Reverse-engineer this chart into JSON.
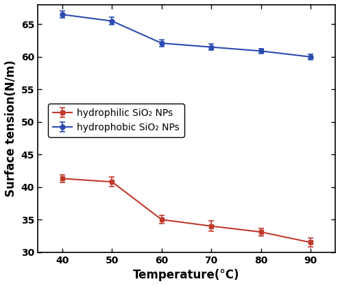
{
  "temperature": [
    40,
    50,
    60,
    70,
    80,
    90
  ],
  "hydrophilic_y": [
    41.3,
    40.8,
    35.0,
    34.0,
    33.1,
    31.5
  ],
  "hydrophilic_yerr": [
    0.6,
    0.7,
    0.6,
    0.8,
    0.6,
    0.7
  ],
  "hydrophobic_y": [
    66.5,
    65.5,
    62.1,
    61.5,
    60.9,
    60.0
  ],
  "hydrophobic_yerr": [
    0.5,
    0.6,
    0.5,
    0.5,
    0.4,
    0.4
  ],
  "hydrophilic_color": "#C0392B",
  "hydrophobic_color": "#2B4BAF",
  "xlabel": "Temperature(°C)",
  "ylabel": "Surface tension(N/m)",
  "ylim": [
    30,
    68
  ],
  "yticks": [
    30,
    35,
    40,
    45,
    50,
    55,
    60,
    65
  ],
  "xlim": [
    35,
    95
  ],
  "xticks": [
    40,
    50,
    60,
    70,
    80,
    90
  ],
  "hydrophilic_label": "hydrophilic SiO₂ NPs",
  "hydrophobic_label": "hydrophobic SiO₂ NPs",
  "background_color": "#ffffff"
}
